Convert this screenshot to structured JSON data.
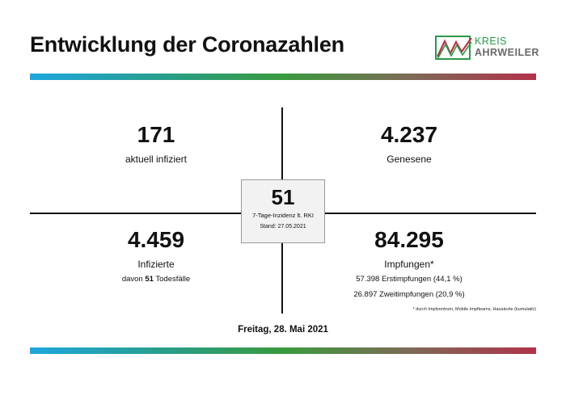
{
  "header": {
    "title": "Entwicklung der Coronazahlen",
    "logo": {
      "line1": "KREIS",
      "line2": "AHRWEILER",
      "colors": {
        "green": "#2a9a47",
        "red": "#c0304a",
        "gray": "#6a6a6a"
      }
    }
  },
  "stats": {
    "active": {
      "value": "171",
      "label": "aktuell infiziert"
    },
    "recovered": {
      "value": "4.237",
      "label": "Genesene"
    },
    "infected": {
      "value": "4.459",
      "label": "Infizierte",
      "deaths_prefix": "davon",
      "deaths_value": "51",
      "deaths_suffix": "Todesfälle"
    },
    "vaccinations": {
      "value": "84.295",
      "label": "Impfungen*",
      "first": "57.398 Erstimpfungen (44,1 %)",
      "second": "26.897 Zweitimpfungen (20,9 %)"
    }
  },
  "incidence": {
    "value": "51",
    "label": "7-Tage-Inzidenz lt. RKI",
    "stand": "Stand: 27.05.2021"
  },
  "footnote": "* durch Impfzentrum, Mobile Impfteams, Hausärzte (kumulativ)",
  "date": "Freitag, 28. Mai 2021",
  "colors": {
    "bar_start": "#1ea6df",
    "bar_mid": "#3a9a3e",
    "bar_end": "#b1324a"
  }
}
